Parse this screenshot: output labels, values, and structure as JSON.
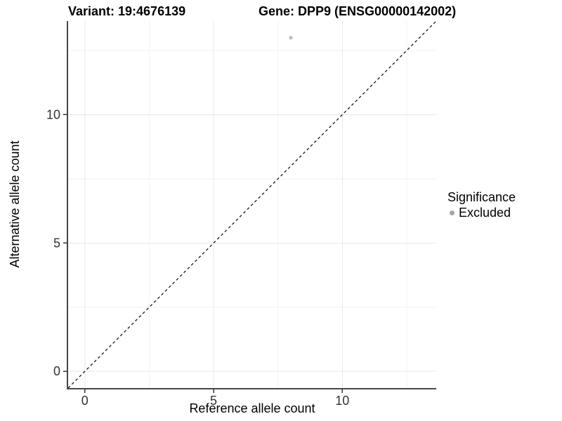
{
  "titles": {
    "variant": "Variant: 19:4676139",
    "gene": "Gene: DPP9 (ENSG00000142002)"
  },
  "axis_titles": {
    "x": "Reference allele count",
    "y": "Alternative allele count"
  },
  "legend": {
    "title": "Significance",
    "items": [
      {
        "label": "Excluded",
        "color": "#a6a6a6"
      }
    ]
  },
  "chart_data": {
    "type": "scatter",
    "title": "Variant: 19:4676139 | Gene: DPP9 (ENSG00000142002)",
    "xlabel": "Reference allele count",
    "ylabel": "Alternative allele count",
    "xlim": [
      0,
      13
    ],
    "ylim": [
      0,
      13
    ],
    "expansion_frac": 0.05,
    "x_major_ticks": [
      0,
      5,
      10
    ],
    "y_major_ticks": [
      0,
      5,
      10
    ],
    "x_minor_ticks": [
      2.5,
      7.5,
      12.5
    ],
    "y_minor_ticks": [
      2.5,
      7.5,
      12.5
    ],
    "grid": "major+minor",
    "legend_position": "right-middle",
    "series": [
      {
        "name": "Excluded",
        "color": "#bdbdbd",
        "points": [
          {
            "x": 8,
            "y": 13
          }
        ]
      }
    ],
    "reference_line": {
      "style": "dashed",
      "slope": 1,
      "intercept": 0,
      "color": "#1a1a1a"
    }
  },
  "colors": {
    "grid_major": "#e7e7e7",
    "grid_minor": "#f2f2f2",
    "axis_line": "#464646",
    "tick": "#333333",
    "tick_label": "#333333",
    "background": "#ffffff"
  }
}
